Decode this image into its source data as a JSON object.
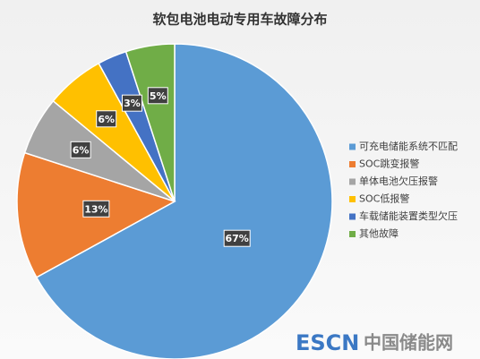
{
  "chart_data": {
    "type": "pie",
    "title": "软包电池电动专用车故障分布",
    "categories": [
      "可充电储能系统不匹配",
      "SOC跳变报警",
      "单体电池欠压报警",
      "SOC低报警",
      "车载储能装置类型欠压",
      "其他故障"
    ],
    "values": [
      67,
      13,
      6,
      6,
      3,
      5
    ],
    "value_labels": [
      "67%",
      "13%",
      "6%",
      "6%",
      "3%",
      "5%"
    ],
    "colors": [
      "#5b9bd5",
      "#ed7d31",
      "#a5a5a5",
      "#ffc000",
      "#4472c4",
      "#70ad47"
    ],
    "legend": "right"
  },
  "watermark": {
    "brand": "ESCN",
    "site": "中国储能网"
  }
}
